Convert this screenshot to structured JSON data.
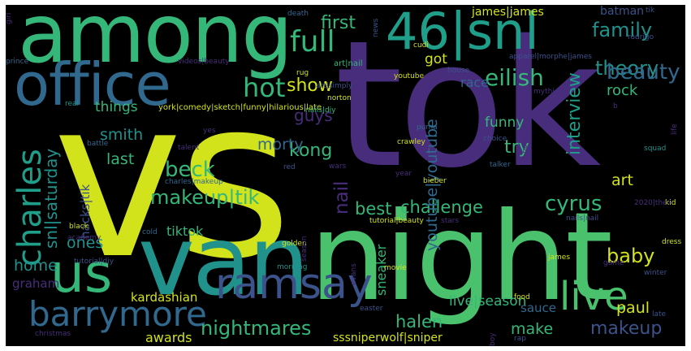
{
  "cloud": {
    "colors": {
      "background": "#000000",
      "yellow": "#d2e21b",
      "green": "#4ac16d",
      "mint": "#35b779",
      "teal": "#21918c",
      "cyan": "#1f9e89",
      "blue": "#31688e",
      "slate": "#3b528b",
      "purple": "#472d7b",
      "violet": "#440154"
    },
    "words": {
      "vs": "vs",
      "tok": "tok",
      "night": "night",
      "van": "van",
      "among": "among",
      "office": "office",
      "snl_46": "46|snl",
      "us": "us",
      "ramsay": "ramsay",
      "barrymore": "barrymore",
      "live": "live",
      "charles": "charles",
      "full": "full",
      "hot": "hot",
      "eilish": "eilish",
      "theory": "theory",
      "family": "family",
      "beauty": "beauty",
      "first": "first",
      "james_james": "james|james",
      "batman": "batman",
      "got": "got",
      "show": "show",
      "interview": "interview",
      "race": "race",
      "rock": "rock",
      "guys": "guys",
      "kong": "kong",
      "things": "things",
      "smith": "smith",
      "morty": "morty",
      "funny": "funny",
      "try": "try",
      "last": "last",
      "beck": "beck",
      "makeup_tik": "makeup|tik",
      "nail": "nail",
      "best": "best",
      "challenge": "challenge",
      "cyrus": "cyrus",
      "art": "art",
      "youtube_youtube": "youtube|youtube",
      "snl_saturday": "snl|saturday",
      "hacks_tik": "hacks|tik",
      "tiktok": "tiktok",
      "ones": "ones",
      "home": "home",
      "sneaker": "sneaker",
      "baby": "baby",
      "graham": "graham",
      "kardashian": "kardashian",
      "live_season": "live|season",
      "paul": "paul",
      "halen": "halen",
      "nightmares": "nightmares",
      "make": "make",
      "makeup": "makeup",
      "sauce": "sauce",
      "awards": "awards",
      "sssniperwolf": "sssniperwolf|sniper",
      "york_comedy": "york|comedy|sketch|funny|hilarious|late",
      "art_nail": "art|nail",
      "art_simply": "art|simply",
      "apparel": "apparel|morphe|james",
      "videos_beauty": "videos|beauty",
      "prince": "prince",
      "girl": "girl",
      "death": "death",
      "news": "news",
      "cudi": "cudi",
      "rodrigo": "rodrigo",
      "tik_small": "tik",
      "rug": "rug",
      "house": "house",
      "youtube": "youtube",
      "norton": "norton",
      "mythical": "mythical",
      "real": "real",
      "b_small": "b",
      "nails_diy": "nails|diy",
      "yes": "yes",
      "battle": "battle",
      "crawley": "crawley",
      "puma": "puma",
      "choice": "choice",
      "talent": "talent",
      "boseman": "boseman",
      "squad": "squad",
      "life": "life",
      "red": "red",
      "wars": "wars",
      "talker": "talker",
      "charles_makeup": "charles|makeup",
      "year": "year",
      "bieber": "bieber",
      "kid": "kid",
      "the_2020": "2020|the",
      "black": "black",
      "tutorial_beauty": "tutorial|beauty",
      "stars": "stars",
      "nails_nail": "nails|nail",
      "cold": "cold",
      "academy": "academy",
      "golden": "golden",
      "dress": "dress",
      "tutorial_diy": "tutorial|diy",
      "james_small": "james",
      "game": "game",
      "winter": "winter",
      "morning": "morning",
      "evans": "evans",
      "movie": "movie",
      "season": "season",
      "easter": "easter",
      "food": "food",
      "late": "late",
      "christmas": "christmas",
      "boy": "boy",
      "rap": "rap"
    }
  }
}
